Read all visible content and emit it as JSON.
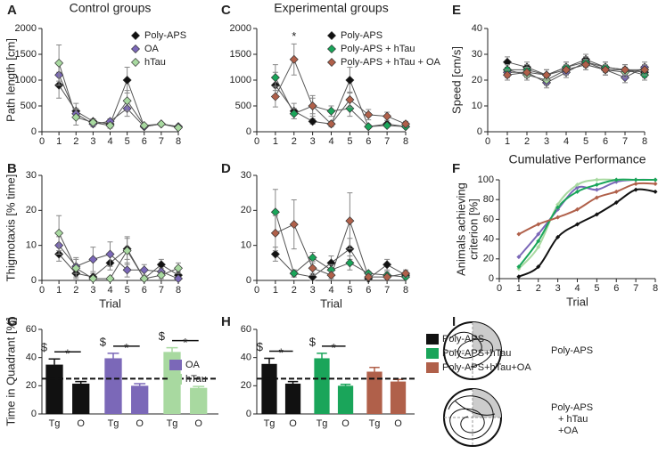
{
  "chart_data": [
    {
      "panel": "A",
      "type": "line",
      "title": "Control groups",
      "ylabel": "Path length [cm]",
      "x": [
        1,
        2,
        3,
        4,
        5,
        6,
        7,
        8
      ],
      "xlim": [
        0,
        8
      ],
      "xticks": [
        0,
        1,
        2,
        3,
        4,
        5,
        6,
        7,
        8
      ],
      "ylim": [
        0,
        2000
      ],
      "yticks": [
        0,
        500,
        1000,
        1500,
        2000
      ],
      "legend": "top-right",
      "series": [
        {
          "name": "Poly-APS",
          "color": "#111111",
          "values": [
            900,
            400,
            200,
            150,
            1000,
            100,
            150,
            100
          ],
          "errors": [
            250,
            150,
            50,
            50,
            250,
            30,
            30,
            30
          ]
        },
        {
          "name": "OA",
          "color": "#7b68b8",
          "values": [
            1100,
            350,
            150,
            200,
            450,
            100,
            150,
            100
          ],
          "errors": [
            200,
            100,
            50,
            50,
            150,
            30,
            30,
            20
          ]
        },
        {
          "name": "hTau",
          "color": "#a8d9a0",
          "values": [
            1330,
            280,
            180,
            120,
            600,
            120,
            150,
            80
          ],
          "errors": [
            350,
            150,
            60,
            50,
            200,
            30,
            30,
            30
          ]
        }
      ]
    },
    {
      "panel": "C",
      "type": "line",
      "title": "Experimental groups",
      "x": [
        1,
        2,
        3,
        4,
        5,
        6,
        7,
        8
      ],
      "xlim": [
        0,
        8
      ],
      "xticks": [
        0,
        1,
        2,
        3,
        4,
        5,
        6,
        7,
        8
      ],
      "ylim": [
        0,
        2000
      ],
      "yticks": [
        0,
        500,
        1000,
        1500,
        2000
      ],
      "legend": "top-right",
      "annotations": [
        {
          "text": "*",
          "x": 2
        }
      ],
      "series": [
        {
          "name": "Poly-APS",
          "color": "#111111",
          "values": [
            900,
            400,
            200,
            150,
            1000,
            100,
            150,
            100
          ],
          "errors": [
            250,
            150,
            50,
            50,
            250,
            30,
            30,
            30
          ]
        },
        {
          "name": "Poly-APS + hTau",
          "color": "#1aa55a",
          "values": [
            1050,
            350,
            500,
            400,
            450,
            100,
            120,
            100
          ],
          "errors": [
            250,
            100,
            150,
            100,
            150,
            30,
            30,
            30
          ]
        },
        {
          "name": "Poly-APS + hTau + OA",
          "color": "#b0604a",
          "values": [
            680,
            1400,
            500,
            150,
            620,
            330,
            300,
            150
          ],
          "errors": [
            200,
            300,
            200,
            50,
            150,
            100,
            80,
            50
          ]
        }
      ]
    },
    {
      "panel": "E",
      "type": "line",
      "ylabel": "Speed [cm/s]",
      "x": [
        1,
        2,
        3,
        4,
        5,
        6,
        7,
        8
      ],
      "xlim": [
        0,
        8
      ],
      "xticks": [
        0,
        1,
        2,
        3,
        4,
        5,
        6,
        7,
        8
      ],
      "ylim": [
        0,
        40
      ],
      "yticks": [
        0,
        10,
        20,
        30,
        40
      ],
      "series": [
        {
          "color": "#111111",
          "values": [
            27,
            25,
            22,
            25,
            28,
            25,
            24,
            23
          ],
          "errors": [
            2,
            2,
            2,
            2,
            2,
            2,
            2,
            2
          ]
        },
        {
          "color": "#7b68b8",
          "values": [
            23,
            23,
            19,
            23,
            27,
            24,
            21,
            25
          ],
          "errors": [
            2,
            2,
            2,
            2,
            2,
            2,
            2,
            2
          ]
        },
        {
          "color": "#a8d9a0",
          "values": [
            24,
            22,
            20,
            24,
            26,
            24,
            23,
            24
          ],
          "errors": [
            2,
            2,
            2,
            2,
            2,
            2,
            2,
            2
          ]
        },
        {
          "color": "#1aa55a",
          "values": [
            24,
            24,
            22,
            25,
            27,
            25,
            24,
            22
          ],
          "errors": [
            2,
            2,
            2,
            2,
            2,
            2,
            2,
            2
          ]
        },
        {
          "color": "#b0604a",
          "values": [
            22,
            23,
            22,
            24,
            26,
            24,
            24,
            24
          ],
          "errors": [
            2,
            2,
            2,
            2,
            2,
            2,
            2,
            2
          ]
        }
      ]
    },
    {
      "panel": "B",
      "type": "line",
      "ylabel": "Thigmotaxis [% time]",
      "xlabel": "Trial",
      "x": [
        1,
        2,
        3,
        4,
        5,
        6,
        7,
        8
      ],
      "xlim": [
        0,
        8
      ],
      "xticks": [
        0,
        1,
        2,
        3,
        4,
        5,
        6,
        7,
        8
      ],
      "ylim": [
        0,
        30
      ],
      "yticks": [
        0,
        10,
        20,
        30
      ],
      "series": [
        {
          "color": "#111111",
          "values": [
            7.5,
            2,
            1,
            5,
            9,
            0.5,
            4.5,
            1.5
          ],
          "errors": [
            2,
            1,
            1,
            2,
            3,
            0.5,
            1.5,
            1
          ]
        },
        {
          "color": "#7b68b8",
          "values": [
            10,
            4,
            6,
            7.5,
            3,
            3,
            2.5,
            0.5
          ],
          "errors": [
            2.5,
            2,
            3.5,
            3.5,
            2,
            1.5,
            1,
            0.5
          ]
        },
        {
          "color": "#a8d9a0",
          "values": [
            13.5,
            3.5,
            0.5,
            0.5,
            8.5,
            0.5,
            1.5,
            3.5
          ],
          "errors": [
            5,
            3,
            0.5,
            0.5,
            4,
            0.5,
            1,
            1.5
          ]
        }
      ]
    },
    {
      "panel": "D",
      "type": "line",
      "xlabel": "Trial",
      "x": [
        1,
        2,
        3,
        4,
        5,
        6,
        7,
        8
      ],
      "xlim": [
        0,
        8
      ],
      "xticks": [
        0,
        1,
        2,
        3,
        4,
        5,
        6,
        7,
        8
      ],
      "ylim": [
        0,
        30
      ],
      "yticks": [
        0,
        10,
        20,
        30
      ],
      "series": [
        {
          "color": "#111111",
          "values": [
            7.5,
            2,
            1,
            5,
            9,
            0.5,
            4.5,
            1.5
          ],
          "errors": [
            2,
            1,
            1,
            2,
            3,
            0.5,
            1.5,
            1
          ]
        },
        {
          "color": "#1aa55a",
          "values": [
            19.5,
            2,
            6.5,
            3,
            5,
            2,
            1.5,
            1
          ],
          "errors": [
            6.5,
            1,
            1.5,
            1.5,
            2,
            0.5,
            1,
            0.5
          ]
        },
        {
          "color": "#b0604a",
          "values": [
            13.5,
            16,
            3.5,
            1.5,
            17,
            1,
            1,
            2
          ],
          "errors": [
            5,
            7,
            2,
            1,
            8,
            1,
            0.5,
            1
          ]
        }
      ]
    },
    {
      "panel": "F",
      "type": "scatter",
      "title": "Cumulative Performance",
      "ylabel": [
        "Animals achieving",
        "criterion [%]"
      ],
      "xlabel": "Trial",
      "x": [
        1,
        2,
        3,
        4,
        5,
        6,
        7,
        8
      ],
      "xlim": [
        0,
        8
      ],
      "xticks": [
        0,
        1,
        2,
        3,
        4,
        5,
        6,
        7,
        8
      ],
      "ylim": [
        0,
        100
      ],
      "yticks": [
        0,
        20,
        40,
        60,
        80,
        100
      ],
      "series": [
        {
          "color": "#111111",
          "values": [
            2,
            12,
            42,
            55,
            65,
            77,
            90,
            88
          ]
        },
        {
          "color": "#7b68b8",
          "values": [
            22,
            45,
            70,
            92,
            90,
            98,
            100,
            100
          ]
        },
        {
          "color": "#a8d9a0",
          "values": [
            10,
            32,
            75,
            95,
            100,
            100,
            100,
            100
          ]
        },
        {
          "color": "#1aa55a",
          "values": [
            12,
            38,
            72,
            88,
            95,
            100,
            100,
            100
          ]
        },
        {
          "color": "#b0604a",
          "values": [
            45,
            55,
            62,
            70,
            82,
            88,
            96,
            96
          ]
        }
      ]
    },
    {
      "panel": "G",
      "type": "bar",
      "ylabel": "Time in Quadrant [%]",
      "categories": [
        "Tg",
        "O",
        "Tg",
        "O",
        "Tg",
        "O"
      ],
      "values": [
        35,
        21.5,
        39.5,
        20,
        44,
        18.5
      ],
      "errors": [
        4,
        1.5,
        3.5,
        1.5,
        3,
        1
      ],
      "colors": [
        "#111111",
        "#111111",
        "#7b68b8",
        "#7b68b8",
        "#a8d9a0",
        "#a8d9a0"
      ],
      "ylim": [
        0,
        60
      ],
      "yticks": [
        0,
        20,
        40,
        60
      ],
      "chance_level": 25,
      "sig": [
        [
          "$",
          "*"
        ],
        [
          "$",
          "*"
        ],
        [
          "$",
          "*"
        ]
      ],
      "legend_entries": [
        {
          "name": "OA",
          "color": "#7b68b8"
        },
        {
          "name": "hTau",
          "color": "#a8d9a0"
        }
      ]
    },
    {
      "panel": "H",
      "type": "bar",
      "categories": [
        "Tg",
        "O",
        "Tg",
        "O",
        "Tg",
        "O"
      ],
      "values": [
        35.5,
        21.5,
        39.5,
        20,
        30,
        23
      ],
      "errors": [
        4,
        1.5,
        3.5,
        1,
        3,
        1.5
      ],
      "colors": [
        "#111111",
        "#111111",
        "#1aa55a",
        "#1aa55a",
        "#b0604a",
        "#b0604a"
      ],
      "ylim": [
        0,
        60
      ],
      "yticks": [
        0,
        20,
        40,
        60
      ],
      "chance_level": 25,
      "sig": [
        [
          "$",
          "*"
        ],
        [
          "$",
          "*"
        ]
      ],
      "legend_entries": [
        {
          "name": "Poly-APS",
          "color": "#111111"
        },
        {
          "name": "Poly-APS+hTau",
          "color": "#1aa55a"
        },
        {
          "name": "Poly-APS+hTau+OA",
          "color": "#b0604a"
        }
      ]
    }
  ],
  "diagram": {
    "panel": "I",
    "labels": [
      [
        "Poly-APS"
      ],
      [
        "Poly-APS",
        "+ hTau",
        "+OA"
      ]
    ]
  }
}
